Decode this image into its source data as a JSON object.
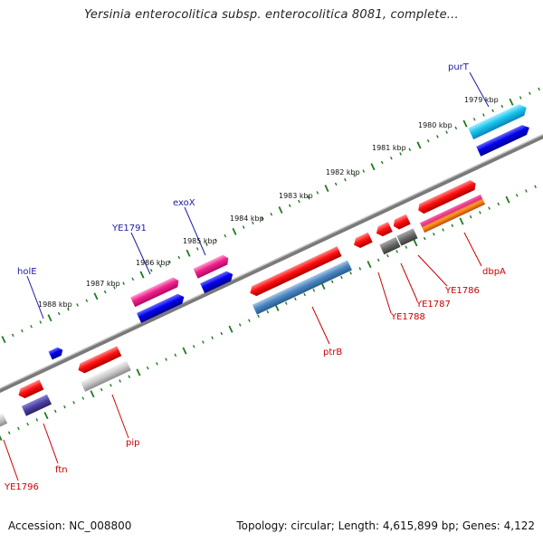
{
  "title": "Yersinia enterocolitica subsp. enterocolitica 8081, complete...",
  "footer": {
    "accession": "Accession: NC_008800",
    "summary": "Topology: circular; Length: 4,615,899 bp; Genes: 4,122"
  },
  "colors": {
    "backbone": "#8a8a8a",
    "ticks": "#1f7a1f",
    "label_top": "#1a1aa8",
    "label_bottom": "#cc0000"
  },
  "kbp_labels": [
    "1979 kbp",
    "1980 kbp",
    "1981 kbp",
    "1982 kbp",
    "1983 kbp",
    "1984 kbp",
    "1985 kbp",
    "1986 kbp",
    "1987 kbp",
    "1988 kbp"
  ],
  "labels_top": [
    "purT",
    "exoX",
    "YE1791",
    "holE"
  ],
  "labels_bottom": [
    "dbpA",
    "YE1786",
    "YE1787",
    "YE1788",
    "ptrB",
    "pip",
    "ftn",
    "YE1796"
  ]
}
